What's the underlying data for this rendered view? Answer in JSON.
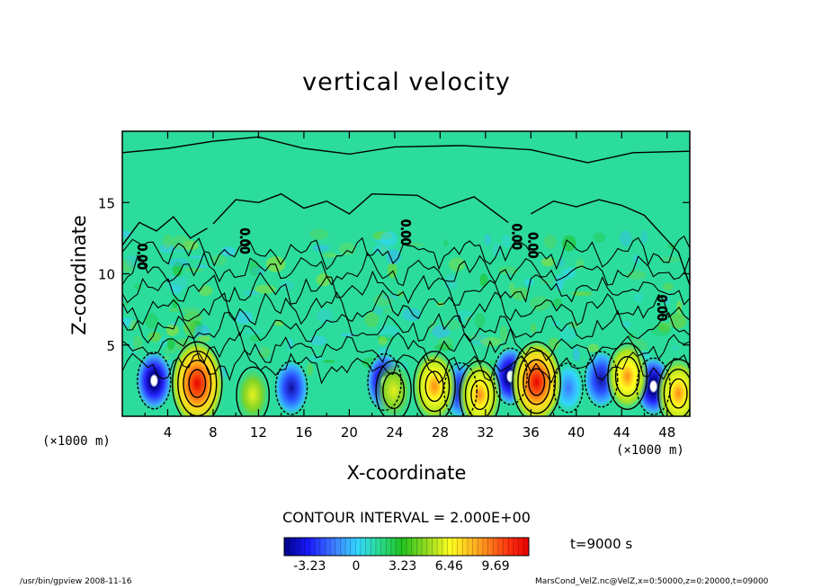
{
  "chart_data": {
    "type": "heatmap",
    "title": "vertical velocity",
    "xlabel": "X-coordinate",
    "ylabel": "Z-coordinate",
    "x_unit_left": "(×1000 m)",
    "x_unit_right": "(×1000 m)",
    "xlim": [
      0,
      50
    ],
    "ylim": [
      0,
      20
    ],
    "x_ticks": [
      "4",
      "8",
      "12",
      "16",
      "20",
      "24",
      "28",
      "32",
      "36",
      "40",
      "44",
      "48"
    ],
    "y_ticks": [
      "5",
      "10",
      "15"
    ],
    "contour_interval": "CONTOUR INTERVAL = 2.000E+00",
    "contour_labels": [
      "0.00",
      "0.00",
      "0.00",
      "0.00",
      "0.00",
      "0.00"
    ],
    "colorbar": {
      "ticks": [
        "-3.23",
        "0",
        "3.23",
        "6.46",
        "9.69"
      ],
      "colors": [
        "#00008b",
        "#1a1aff",
        "#3c78ff",
        "#33d6ff",
        "#2bdc9d",
        "#1fc21f",
        "#a8e020",
        "#ffff20",
        "#ffa020",
        "#ff3010",
        "#e80000"
      ]
    },
    "time_label": "t=9000 s",
    "updrafts": [
      {
        "x": 6.6,
        "z": 2.3,
        "w": 9.69
      },
      {
        "x": 27.5,
        "z": 2.1,
        "w": 6.5
      },
      {
        "x": 31.5,
        "z": 1.5,
        "w": 6.0
      },
      {
        "x": 36.5,
        "z": 2.4,
        "w": 9.0
      },
      {
        "x": 44.5,
        "z": 2.8,
        "w": 5.5
      },
      {
        "x": 49.0,
        "z": 1.6,
        "w": 6.0
      },
      {
        "x": 23.9,
        "z": 1.8,
        "w": 4.0
      },
      {
        "x": 11.5,
        "z": 1.5,
        "w": 3.0
      }
    ],
    "downdrafts": [
      {
        "x": 2.8,
        "z": 2.5,
        "w": -3.23
      },
      {
        "x": 14.9,
        "z": 2.0,
        "w": -2.5
      },
      {
        "x": 23.1,
        "z": 2.4,
        "w": -3.23
      },
      {
        "x": 29.8,
        "z": 1.8,
        "w": -3.0
      },
      {
        "x": 34.2,
        "z": 2.8,
        "w": -3.2
      },
      {
        "x": 42.2,
        "z": 2.6,
        "w": -3.0
      },
      {
        "x": 46.8,
        "z": 2.1,
        "w": -3.23
      },
      {
        "x": 39.3,
        "z": 2.0,
        "w": -1.5
      }
    ]
  },
  "footer": {
    "left": "/usr/bin/gpview   2008-11-16",
    "right": "MarsCond_VelZ.nc@VelZ,x=0:50000,z=0:20000,t=09000"
  }
}
